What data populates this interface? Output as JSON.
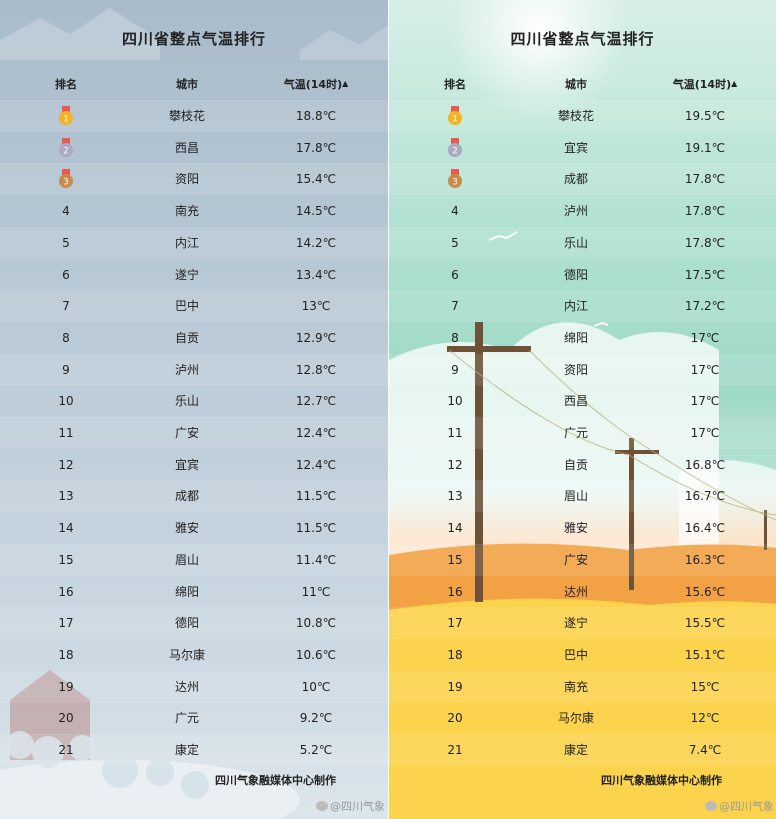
{
  "left": {
    "title": "四川省整点气温排行",
    "headers": {
      "rank": "排名",
      "city": "城市",
      "temp": "气温(14时)"
    },
    "rows": [
      {
        "rank": "1",
        "city": "攀枝花",
        "temp": "18.8℃"
      },
      {
        "rank": "2",
        "city": "西昌",
        "temp": "17.8℃"
      },
      {
        "rank": "3",
        "city": "资阳",
        "temp": "15.4℃"
      },
      {
        "rank": "4",
        "city": "南充",
        "temp": "14.5℃"
      },
      {
        "rank": "5",
        "city": "内江",
        "temp": "14.2℃"
      },
      {
        "rank": "6",
        "city": "遂宁",
        "temp": "13.4℃"
      },
      {
        "rank": "7",
        "city": "巴中",
        "temp": "13℃"
      },
      {
        "rank": "8",
        "city": "自贡",
        "temp": "12.9℃"
      },
      {
        "rank": "9",
        "city": "泸州",
        "temp": "12.8℃"
      },
      {
        "rank": "10",
        "city": "乐山",
        "temp": "12.7℃"
      },
      {
        "rank": "11",
        "city": "广安",
        "temp": "12.4℃"
      },
      {
        "rank": "12",
        "city": "宜宾",
        "temp": "12.4℃"
      },
      {
        "rank": "13",
        "city": "成都",
        "temp": "11.5℃"
      },
      {
        "rank": "14",
        "city": "雅安",
        "temp": "11.5℃"
      },
      {
        "rank": "15",
        "city": "眉山",
        "temp": "11.4℃"
      },
      {
        "rank": "16",
        "city": "绵阳",
        "temp": "11℃"
      },
      {
        "rank": "17",
        "city": "德阳",
        "temp": "10.8℃"
      },
      {
        "rank": "18",
        "city": "马尔康",
        "temp": "10.6℃"
      },
      {
        "rank": "19",
        "city": "达州",
        "temp": "10℃"
      },
      {
        "rank": "20",
        "city": "广元",
        "temp": "9.2℃"
      },
      {
        "rank": "21",
        "city": "康定",
        "temp": "5.2℃"
      }
    ],
    "footer": "四川气象融媒体中心制作",
    "watermark": "@四川气象"
  },
  "right": {
    "title": "四川省整点气温排行",
    "headers": {
      "rank": "排名",
      "city": "城市",
      "temp": "气温(14时)"
    },
    "rows": [
      {
        "rank": "1",
        "city": "攀枝花",
        "temp": "19.5℃"
      },
      {
        "rank": "2",
        "city": "宜宾",
        "temp": "19.1℃"
      },
      {
        "rank": "3",
        "city": "成都",
        "temp": "17.8℃"
      },
      {
        "rank": "4",
        "city": "泸州",
        "temp": "17.8℃"
      },
      {
        "rank": "5",
        "city": "乐山",
        "temp": "17.8℃"
      },
      {
        "rank": "6",
        "city": "德阳",
        "temp": "17.5℃"
      },
      {
        "rank": "7",
        "city": "内江",
        "temp": "17.2℃"
      },
      {
        "rank": "8",
        "city": "绵阳",
        "temp": "17℃"
      },
      {
        "rank": "9",
        "city": "资阳",
        "temp": "17℃"
      },
      {
        "rank": "10",
        "city": "西昌",
        "temp": "17℃"
      },
      {
        "rank": "11",
        "city": "广元",
        "temp": "17℃"
      },
      {
        "rank": "12",
        "city": "自贡",
        "temp": "16.8℃"
      },
      {
        "rank": "13",
        "city": "眉山",
        "temp": "16.7℃"
      },
      {
        "rank": "14",
        "city": "雅安",
        "temp": "16.4℃"
      },
      {
        "rank": "15",
        "city": "广安",
        "temp": "16.3℃"
      },
      {
        "rank": "16",
        "city": "达州",
        "temp": "15.6℃"
      },
      {
        "rank": "17",
        "city": "遂宁",
        "temp": "15.5℃"
      },
      {
        "rank": "18",
        "city": "巴中",
        "temp": "15.1℃"
      },
      {
        "rank": "19",
        "city": "南充",
        "temp": "15℃"
      },
      {
        "rank": "20",
        "city": "马尔康",
        "temp": "12℃"
      },
      {
        "rank": "21",
        "city": "康定",
        "temp": "7.4℃"
      }
    ],
    "footer": "四川气象融媒体中心制作",
    "watermark": "@四川气象"
  },
  "colors": {
    "gold": "#f5b323",
    "silver": "#a9a9c0",
    "bronze": "#c98a4b",
    "ribbon": "#e85a4f",
    "pole": "#6b4f36"
  },
  "icons": {
    "sort": "caret-up-icon",
    "medal": "medal-icon",
    "weibo": "weibo-icon"
  }
}
